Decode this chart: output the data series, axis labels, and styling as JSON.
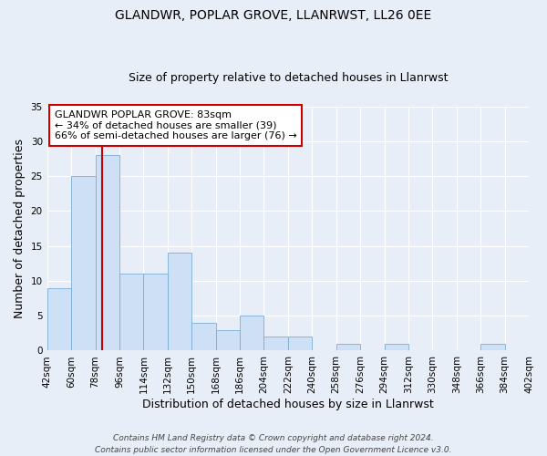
{
  "title": "GLANDWR, POPLAR GROVE, LLANRWST, LL26 0EE",
  "subtitle": "Size of property relative to detached houses in Llanrwst",
  "xlabel": "Distribution of detached houses by size in Llanrwst",
  "ylabel": "Number of detached properties",
  "bin_labels": [
    "42sqm",
    "60sqm",
    "78sqm",
    "96sqm",
    "114sqm",
    "132sqm",
    "150sqm",
    "168sqm",
    "186sqm",
    "204sqm",
    "222sqm",
    "240sqm",
    "258sqm",
    "276sqm",
    "294sqm",
    "312sqm",
    "330sqm",
    "348sqm",
    "366sqm",
    "384sqm",
    "402sqm"
  ],
  "bin_edges": [
    42,
    60,
    78,
    96,
    114,
    132,
    150,
    168,
    186,
    204,
    222,
    240,
    258,
    276,
    294,
    312,
    330,
    348,
    366,
    384,
    402
  ],
  "bar_heights": [
    9,
    25,
    28,
    11,
    11,
    14,
    4,
    3,
    5,
    2,
    2,
    0,
    1,
    0,
    1,
    0,
    0,
    0,
    1,
    0,
    0
  ],
  "bar_color": "#cde0f5",
  "bar_edgecolor": "#7aadd4",
  "vline_x": 83,
  "vline_color": "#cc0000",
  "ylim": [
    0,
    35
  ],
  "yticks": [
    0,
    5,
    10,
    15,
    20,
    25,
    30,
    35
  ],
  "annotation_title": "GLANDWR POPLAR GROVE: 83sqm",
  "annotation_line1": "← 34% of detached houses are smaller (39)",
  "annotation_line2": "66% of semi-detached houses are larger (76) →",
  "annotation_box_facecolor": "#ffffff",
  "annotation_box_edgecolor": "#cc0000",
  "footer_line1": "Contains HM Land Registry data © Crown copyright and database right 2024.",
  "footer_line2": "Contains public sector information licensed under the Open Government Licence v3.0.",
  "background_color": "#e8eef8",
  "plot_bg_color": "#e8eef8",
  "grid_color": "#ffffff",
  "title_fontsize": 10,
  "subtitle_fontsize": 9,
  "axis_label_fontsize": 9,
  "tick_fontsize": 7.5,
  "annotation_fontsize": 8,
  "footer_fontsize": 6.5
}
